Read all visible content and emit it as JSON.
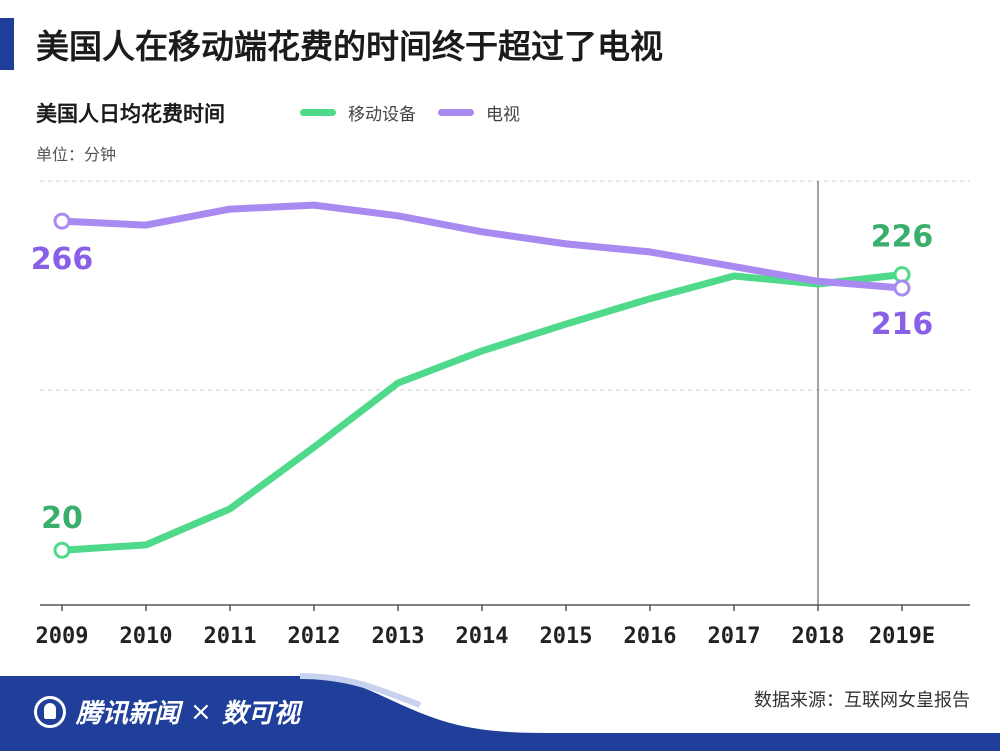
{
  "header": {
    "title": "美国人在移动端花费的时间终于超过了电视",
    "subtitle": "美国人日均花费时间",
    "unit": "单位：分钟"
  },
  "legend": [
    {
      "label": "移动设备",
      "color": "#4fd98a"
    },
    {
      "label": "电视",
      "color": "#a98af0"
    }
  ],
  "chart_data": {
    "type": "line",
    "title": "美国人日均花费时间",
    "ylabel": "单位：分钟",
    "categories": [
      "2009",
      "2010",
      "2011",
      "2012",
      "2013",
      "2014",
      "2015",
      "2016",
      "2017",
      "2018",
      "2019E"
    ],
    "ylim": [
      0,
      296
    ],
    "grid": true,
    "reference_line_at": "2018",
    "series": [
      {
        "name": "移动设备",
        "color": "#4fd98a",
        "label_color": "#3aae6b",
        "values": [
          20,
          24,
          51,
          97,
          145,
          169,
          189,
          208,
          225,
          219,
          226
        ],
        "labeled_points": [
          {
            "index": 0,
            "text": "20"
          },
          {
            "index": 10,
            "text": "226"
          }
        ]
      },
      {
        "name": "电视",
        "color": "#a98af0",
        "label_color": "#8a5fe8",
        "values": [
          266,
          263,
          275,
          278,
          270,
          258,
          249,
          243,
          232,
          221,
          216
        ],
        "labeled_points": [
          {
            "index": 0,
            "text": "266"
          },
          {
            "index": 10,
            "text": "216"
          }
        ]
      }
    ]
  },
  "footer": {
    "brand": "腾讯新闻",
    "separator": "×",
    "partner": "数可视",
    "source": "数据来源：互联网女皇报告",
    "color": "#1f3f9a"
  }
}
